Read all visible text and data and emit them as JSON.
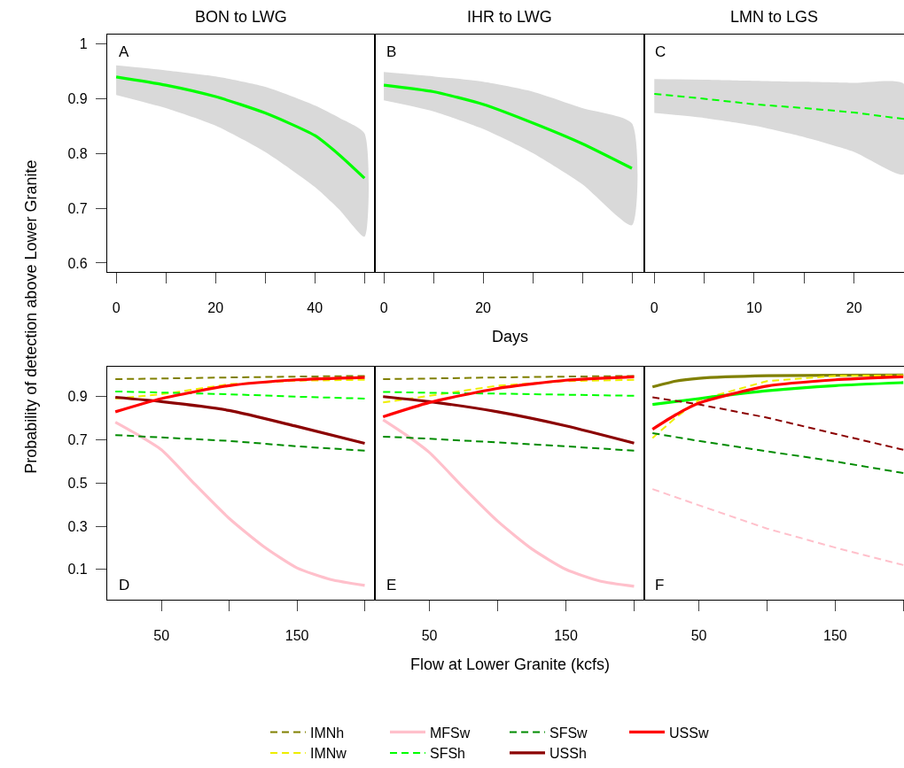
{
  "chart_data": [
    {
      "type": "line",
      "title": "BON to LWG",
      "ylabel": "Probability of detection above Lower Granite",
      "annotations": [
        "A"
      ],
      "xlim": [
        -1.8,
        52.1
      ],
      "xticks": [
        0,
        {
          "value": 10,
          "label": null
        },
        20,
        {
          "value": 30,
          "label": null
        },
        40,
        {
          "value": 50,
          "label": null
        }
      ],
      "ylim": [
        0.584,
        1.018
      ],
      "yticks": [
        0.6,
        0.7,
        0.8,
        0.9,
        1
      ],
      "grid": false,
      "legend": false,
      "series": [
        {
          "color": "#00ff00",
          "line_style": "solid",
          "x": [
            0,
            10,
            20,
            30,
            40,
            45,
            50
          ],
          "values": [
            0.94,
            0.925,
            0.904,
            0.874,
            0.833,
            0.797,
            0.755
          ],
          "lower": [
            0.907,
            0.883,
            0.851,
            0.803,
            0.739,
            0.697,
            0.648
          ],
          "upper": [
            0.961,
            0.952,
            0.941,
            0.922,
            0.888,
            0.865,
            0.837
          ]
        }
      ]
    },
    {
      "type": "line",
      "title": "IHR to LWG",
      "xlabel": "Days",
      "annotations": [
        "B"
      ],
      "xlim": [
        -1.8,
        52.5
      ],
      "xticks": [
        0,
        {
          "value": 10,
          "label": null
        },
        20,
        {
          "value": 30,
          "label": null
        },
        {
          "value": 40,
          "label": null
        },
        {
          "value": 50,
          "label": null
        }
      ],
      "ylim": [
        0.584,
        1.018
      ],
      "yticks": [
        0.6,
        0.7,
        0.8,
        0.9,
        1
      ],
      "tick_labels": "x",
      "grid": false,
      "legend": false,
      "series": [
        {
          "color": "#00ff00",
          "line_style": "solid",
          "x": [
            0,
            10,
            20,
            30,
            40,
            50
          ],
          "values": [
            0.925,
            0.913,
            0.89,
            0.856,
            0.818,
            0.773
          ],
          "lower": [
            0.897,
            0.877,
            0.845,
            0.801,
            0.744,
            0.669
          ],
          "upper": [
            0.949,
            0.941,
            0.931,
            0.913,
            0.883,
            0.855
          ]
        }
      ]
    },
    {
      "type": "line",
      "title": "LMN to LGS",
      "annotations": [
        "C"
      ],
      "xlim": [
        -1.0,
        25
      ],
      "xticks": [
        0,
        {
          "value": 5,
          "label": null
        },
        10,
        {
          "value": 15,
          "label": null
        },
        20,
        {
          "value": 25,
          "label": null
        }
      ],
      "ylim": [
        0.584,
        1.018
      ],
      "yticks": [
        0.6,
        0.7,
        0.8,
        0.9,
        1
      ],
      "tick_labels": "x",
      "grid": false,
      "legend": false,
      "series": [
        {
          "color": "#00ff00",
          "line_style": "dashed",
          "x": [
            0,
            5,
            10,
            15,
            20,
            25
          ],
          "values": [
            0.909,
            0.9,
            0.89,
            0.883,
            0.875,
            0.863
          ],
          "lower": [
            0.874,
            0.865,
            0.851,
            0.83,
            0.803,
            0.762
          ],
          "upper": [
            0.936,
            0.935,
            0.933,
            0.931,
            0.929,
            0.927
          ]
        }
      ]
    },
    {
      "type": "line",
      "annotations": [
        "D"
      ],
      "xlim": [
        10,
        207.5
      ],
      "xticks": [
        50,
        {
          "value": 100,
          "label": null
        },
        150,
        {
          "value": 200,
          "label": null
        }
      ],
      "ylim": [
        -0.04,
        1.04
      ],
      "yticks": [
        0.1,
        0.3,
        0.5,
        0.7,
        0.9
      ],
      "grid": false,
      "legend": "bottom",
      "series": [
        {
          "name": "IMNh",
          "color": "#808000",
          "line_style": "dashed",
          "x": [
            16,
            50,
            100,
            150,
            200
          ],
          "values": [
            0.981,
            0.984,
            0.989,
            0.993,
            0.996
          ]
        },
        {
          "name": "IMNw",
          "color": "#eeee00",
          "line_style": "dashed",
          "x": [
            16,
            50,
            100,
            150,
            200
          ],
          "values": [
            0.891,
            0.911,
            0.958,
            0.974,
            0.978
          ]
        },
        {
          "name": "MFSw",
          "color": "#ffc0cb",
          "line_style": "solid",
          "x": [
            16,
            33,
            50,
            75,
            100,
            125,
            150,
            175,
            200
          ],
          "values": [
            0.782,
            0.722,
            0.654,
            0.492,
            0.336,
            0.208,
            0.107,
            0.053,
            0.026
          ]
        },
        {
          "name": "SFSh",
          "color": "#00ff00",
          "line_style": "dashed",
          "x": [
            16,
            50,
            100,
            150,
            200
          ],
          "values": [
            0.924,
            0.919,
            0.911,
            0.9,
            0.891
          ]
        },
        {
          "name": "SFSw",
          "color": "#008b00",
          "line_style": "dashed",
          "x": [
            16,
            50,
            100,
            150,
            200
          ],
          "values": [
            0.722,
            0.711,
            0.695,
            0.67,
            0.65
          ]
        },
        {
          "name": "USSh",
          "color": "#8b0000",
          "line_style": "solid",
          "x": [
            16,
            50,
            100,
            150,
            200
          ],
          "values": [
            0.897,
            0.877,
            0.836,
            0.762,
            0.684
          ]
        },
        {
          "name": "USSw",
          "color": "#ff0000",
          "line_style": "solid",
          "x": [
            16,
            50,
            100,
            150,
            200
          ],
          "values": [
            0.83,
            0.891,
            0.951,
            0.978,
            0.989
          ]
        }
      ]
    },
    {
      "type": "line",
      "xlabel": "Flow at Lower Granite (kcfs)",
      "annotations": [
        "E"
      ],
      "xlim": [
        10,
        207.5
      ],
      "xticks": [
        50,
        {
          "value": 100,
          "label": null
        },
        150,
        {
          "value": 200,
          "label": null
        }
      ],
      "ylim": [
        -0.04,
        1.04
      ],
      "yticks": [
        0.1,
        0.3,
        0.5,
        0.7,
        0.9
      ],
      "tick_labels": "x",
      "grid": false,
      "series": [
        {
          "color": "#808000",
          "line_style": "dashed",
          "x": [
            16,
            50,
            100,
            150,
            200
          ],
          "values": [
            0.981,
            0.984,
            0.989,
            0.993,
            0.996
          ]
        },
        {
          "color": "#eeee00",
          "line_style": "dashed",
          "x": [
            16,
            50,
            100,
            150,
            200
          ],
          "values": [
            0.873,
            0.904,
            0.951,
            0.972,
            0.978
          ]
        },
        {
          "color": "#ffc0cb",
          "line_style": "solid",
          "x": [
            16,
            33,
            50,
            75,
            100,
            125,
            150,
            175,
            200
          ],
          "values": [
            0.793,
            0.722,
            0.641,
            0.478,
            0.323,
            0.195,
            0.1,
            0.046,
            0.022
          ]
        },
        {
          "color": "#00ff00",
          "line_style": "dashed",
          "x": [
            16,
            50,
            100,
            150,
            200
          ],
          "values": [
            0.922,
            0.918,
            0.914,
            0.909,
            0.904
          ]
        },
        {
          "color": "#008b00",
          "line_style": "dashed",
          "x": [
            16,
            50,
            100,
            150,
            200
          ],
          "values": [
            0.715,
            0.705,
            0.688,
            0.67,
            0.65
          ]
        },
        {
          "color": "#8b0000",
          "line_style": "solid",
          "x": [
            16,
            50,
            100,
            150,
            200
          ],
          "values": [
            0.9,
            0.877,
            0.83,
            0.765,
            0.685
          ]
        },
        {
          "color": "#ff0000",
          "line_style": "solid",
          "x": [
            16,
            50,
            100,
            150,
            200
          ],
          "values": [
            0.807,
            0.873,
            0.938,
            0.976,
            0.992
          ]
        }
      ]
    },
    {
      "type": "line",
      "annotations": [
        "F"
      ],
      "xlim": [
        10,
        200.5
      ],
      "xticks": [
        50,
        {
          "value": 100,
          "label": null
        },
        150,
        {
          "value": 200,
          "label": null
        }
      ],
      "ylim": [
        -0.04,
        1.04
      ],
      "yticks": [
        0.1,
        0.3,
        0.5,
        0.7,
        0.9
      ],
      "tick_labels": "x",
      "grid": false,
      "series": [
        {
          "color": "#808000",
          "line_style": "solid",
          "x": [
            16,
            33,
            50,
            100,
            150,
            200
          ],
          "values": [
            0.945,
            0.972,
            0.985,
            0.997,
            0.999,
            1.0
          ]
        },
        {
          "color": "#eeee00",
          "line_style": "dashed",
          "x": [
            16,
            33,
            50,
            100,
            150,
            200
          ],
          "values": [
            0.708,
            0.803,
            0.884,
            0.972,
            0.996,
            0.999
          ]
        },
        {
          "color": "#ffc0cb",
          "line_style": "dashed",
          "x": [
            16,
            50,
            100,
            150,
            200
          ],
          "values": [
            0.472,
            0.397,
            0.289,
            0.201,
            0.12
          ]
        },
        {
          "color": "#00ff00",
          "line_style": "solid",
          "x": [
            16,
            50,
            100,
            150,
            200
          ],
          "values": [
            0.864,
            0.891,
            0.927,
            0.951,
            0.965
          ]
        },
        {
          "color": "#008b00",
          "line_style": "dashed",
          "x": [
            16,
            50,
            100,
            150,
            200
          ],
          "values": [
            0.731,
            0.695,
            0.647,
            0.6,
            0.546
          ]
        },
        {
          "color": "#8b0000",
          "line_style": "dashed",
          "x": [
            16,
            50,
            100,
            150,
            200
          ],
          "values": [
            0.897,
            0.864,
            0.803,
            0.728,
            0.654
          ]
        },
        {
          "color": "#ff0000",
          "line_style": "solid",
          "x": [
            16,
            33,
            50,
            100,
            150,
            200
          ],
          "values": [
            0.749,
            0.816,
            0.87,
            0.949,
            0.978,
            0.992
          ]
        }
      ]
    }
  ]
}
